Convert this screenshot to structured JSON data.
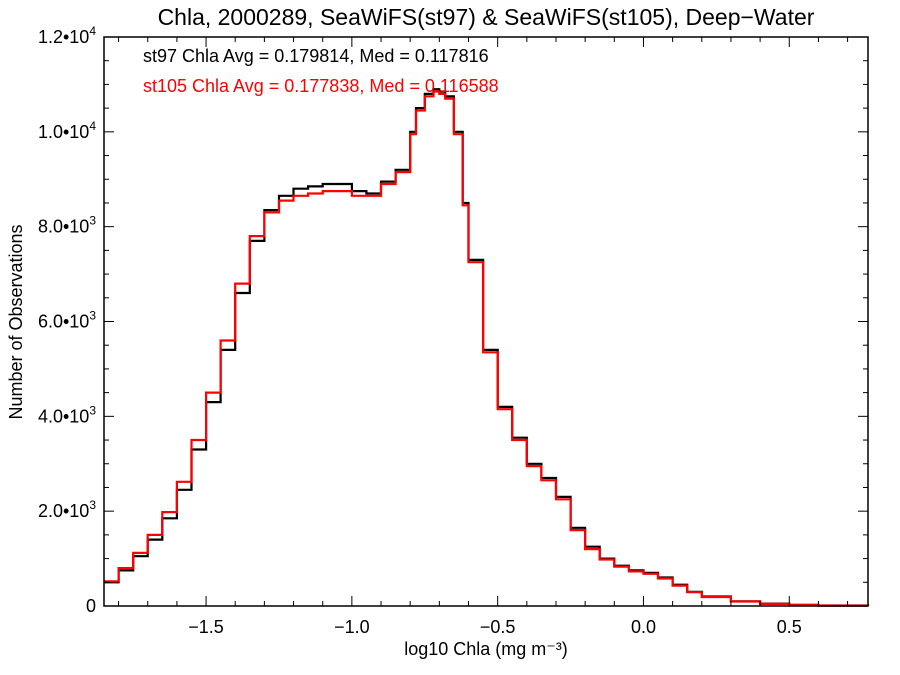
{
  "chart_data": {
    "type": "line",
    "title": "Chla, 2000289, SeaWiFS(st97) & SeaWiFS(st105), Deep−Water",
    "xlabel": "log10 Chla (mg m⁻³)",
    "ylabel": "Number of Observations",
    "xlim": [
      -1.85,
      0.77
    ],
    "ylim": [
      0,
      12000
    ],
    "x_ticks": [
      {
        "value": -1.5,
        "label": "−1.5"
      },
      {
        "value": -1.0,
        "label": "−1.0"
      },
      {
        "value": -0.5,
        "label": "−0.5"
      },
      {
        "value": 0.0,
        "label": "0.0"
      },
      {
        "value": 0.5,
        "label": "0.5"
      }
    ],
    "y_ticks": [
      {
        "value": 0,
        "mantissa": "0",
        "exp": ""
      },
      {
        "value": 2000,
        "mantissa": "2.0•10",
        "exp": "3"
      },
      {
        "value": 4000,
        "mantissa": "4.0•10",
        "exp": "3"
      },
      {
        "value": 6000,
        "mantissa": "6.0•10",
        "exp": "3"
      },
      {
        "value": 8000,
        "mantissa": "8.0•10",
        "exp": "3"
      },
      {
        "value": 10000,
        "mantissa": "1.0•10",
        "exp": "4"
      },
      {
        "value": 12000,
        "mantissa": "1.2•10",
        "exp": "4"
      }
    ],
    "grid": false,
    "style": "histogram-step",
    "annotations": [
      {
        "text": "st97 Chla Avg = 0.179814, Med = 0.117816",
        "color": "#000000"
      },
      {
        "text": "st105 Chla Avg = 0.177838, Med = 0.116588",
        "color": "#ff0000"
      }
    ],
    "series": [
      {
        "color": "#000000",
        "x": [
          -1.85,
          -1.8,
          -1.75,
          -1.7,
          -1.65,
          -1.6,
          -1.55,
          -1.5,
          -1.45,
          -1.4,
          -1.35,
          -1.3,
          -1.25,
          -1.2,
          -1.15,
          -1.1,
          -1.05,
          -1.0,
          -0.95,
          -0.9,
          -0.85,
          -0.8,
          -0.78,
          -0.75,
          -0.72,
          -0.7,
          -0.68,
          -0.65,
          -0.62,
          -0.6,
          -0.55,
          -0.5,
          -0.45,
          -0.4,
          -0.35,
          -0.3,
          -0.25,
          -0.2,
          -0.15,
          -0.1,
          -0.05,
          0.0,
          0.05,
          0.1,
          0.15,
          0.2,
          0.3,
          0.4,
          0.5,
          0.6,
          0.77
        ],
        "y": [
          500,
          750,
          1050,
          1400,
          1850,
          2450,
          3300,
          4300,
          5400,
          6600,
          7700,
          8350,
          8650,
          8800,
          8850,
          8900,
          8900,
          8750,
          8700,
          8950,
          9200,
          10000,
          10500,
          10800,
          10900,
          10850,
          10750,
          10000,
          8500,
          7300,
          5400,
          4200,
          3550,
          3000,
          2700,
          2300,
          1650,
          1250,
          1000,
          850,
          750,
          700,
          600,
          450,
          300,
          200,
          100,
          50,
          25,
          10,
          5
        ]
      },
      {
        "color": "#ff0000",
        "x": [
          -1.85,
          -1.8,
          -1.75,
          -1.7,
          -1.65,
          -1.6,
          -1.55,
          -1.5,
          -1.45,
          -1.4,
          -1.35,
          -1.3,
          -1.25,
          -1.2,
          -1.15,
          -1.1,
          -1.05,
          -1.0,
          -0.95,
          -0.9,
          -0.85,
          -0.8,
          -0.78,
          -0.75,
          -0.72,
          -0.7,
          -0.68,
          -0.65,
          -0.62,
          -0.6,
          -0.55,
          -0.5,
          -0.45,
          -0.4,
          -0.35,
          -0.3,
          -0.25,
          -0.2,
          -0.15,
          -0.1,
          -0.05,
          0.0,
          0.05,
          0.1,
          0.15,
          0.2,
          0.3,
          0.4,
          0.5,
          0.6,
          0.77
        ],
        "y": [
          520,
          800,
          1120,
          1500,
          1980,
          2620,
          3500,
          4500,
          5600,
          6800,
          7800,
          8300,
          8550,
          8650,
          8700,
          8750,
          8750,
          8650,
          8650,
          8900,
          9150,
          9950,
          10450,
          10750,
          10850,
          10800,
          10700,
          9950,
          8450,
          7250,
          5350,
          4150,
          3500,
          2950,
          2650,
          2250,
          1600,
          1200,
          980,
          830,
          730,
          680,
          580,
          430,
          290,
          190,
          95,
          45,
          22,
          9,
          5
        ]
      }
    ]
  }
}
